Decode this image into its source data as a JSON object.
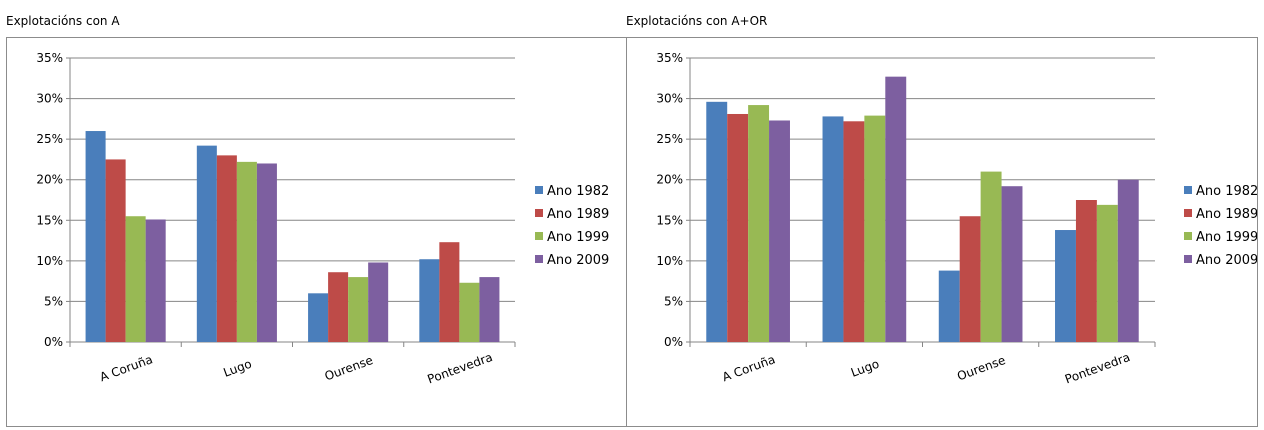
{
  "colors": {
    "Ano 1982": "#4a7ebb",
    "Ano 1989": "#be4b48",
    "Ano 1999": "#98b954",
    "Ano 2009": "#7d5fa0",
    "grid": "#868686"
  },
  "chart_data": [
    {
      "type": "bar",
      "title": "Explotacións con A",
      "categories": [
        "A Coruña",
        "Lugo",
        "Ourense",
        "Pontevedra"
      ],
      "series": [
        {
          "name": "Ano 1982",
          "values": [
            26.0,
            24.2,
            6.0,
            10.2
          ]
        },
        {
          "name": "Ano 1989",
          "values": [
            22.5,
            23.0,
            8.6,
            12.3
          ]
        },
        {
          "name": "Ano 1999",
          "values": [
            15.5,
            22.2,
            8.0,
            7.3
          ]
        },
        {
          "name": "Ano 2009",
          "values": [
            15.1,
            22.0,
            9.8,
            8.0
          ]
        }
      ],
      "yticks": [
        "0%",
        "5%",
        "10%",
        "15%",
        "20%",
        "25%",
        "30%",
        "35%"
      ],
      "ylim": [
        0,
        35
      ],
      "grid": true,
      "legend": "right"
    },
    {
      "type": "bar",
      "title": "Explotacións con A+OR",
      "categories": [
        "A Coruña",
        "Lugo",
        "Ourense",
        "Pontevedra"
      ],
      "series": [
        {
          "name": "Ano 1982",
          "values": [
            29.6,
            27.8,
            8.8,
            13.8
          ]
        },
        {
          "name": "Ano 1989",
          "values": [
            28.1,
            27.2,
            15.5,
            17.5
          ]
        },
        {
          "name": "Ano 1999",
          "values": [
            29.2,
            27.9,
            21.0,
            16.9
          ]
        },
        {
          "name": "Ano 2009",
          "values": [
            27.3,
            32.7,
            19.2,
            20.0
          ]
        }
      ],
      "yticks": [
        "0%",
        "5%",
        "10%",
        "15%",
        "20%",
        "25%",
        "30%",
        "35%"
      ],
      "ylim": [
        0,
        35
      ],
      "grid": true,
      "legend": "right"
    }
  ]
}
